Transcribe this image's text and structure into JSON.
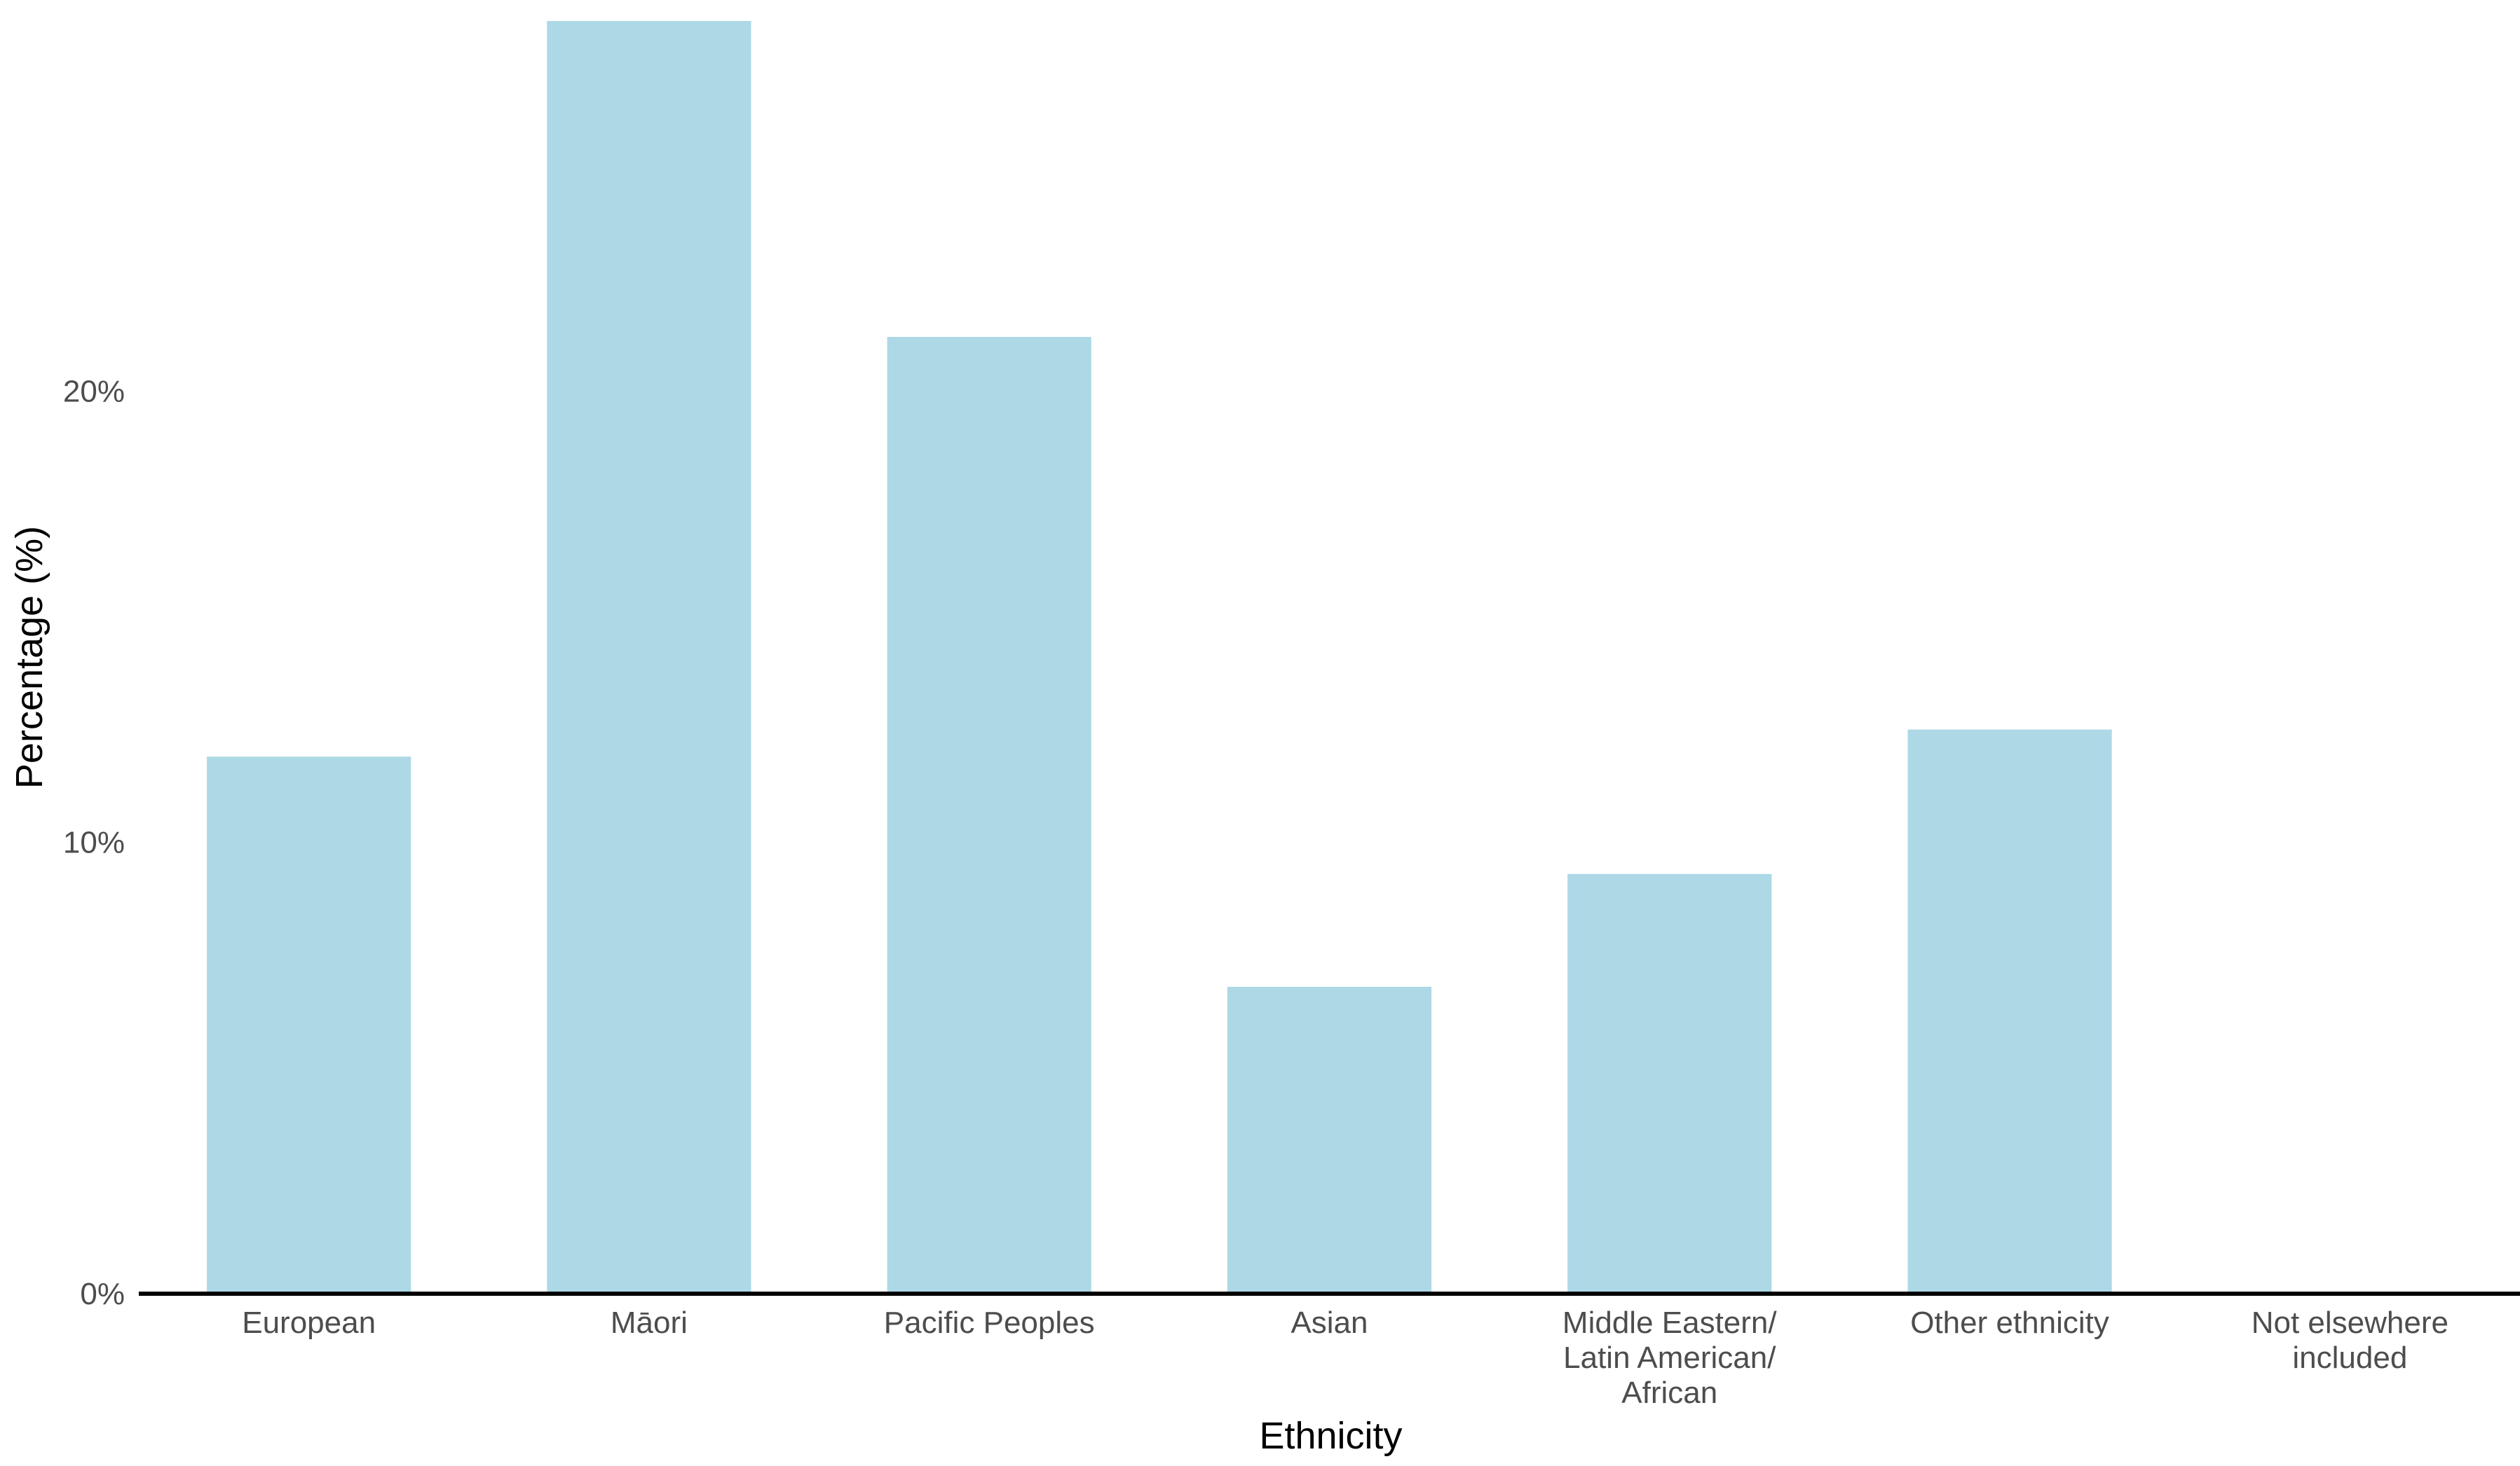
{
  "chart_data": {
    "type": "bar",
    "title": "",
    "xlabel": "Ethnicity",
    "ylabel": "Percentage (%)",
    "categories": [
      [
        "European"
      ],
      [
        "Māori"
      ],
      [
        "Pacific Peoples"
      ],
      [
        "Asian"
      ],
      [
        "Middle Eastern/",
        "Latin American/",
        "African"
      ],
      [
        "Other ethnicity"
      ],
      [
        "Not elsewhere",
        "included"
      ]
    ],
    "values": [
      11.9,
      28.2,
      21.2,
      6.8,
      9.3,
      12.5,
      0
    ],
    "ylim": [
      0,
      28.2
    ],
    "yticks": [
      0,
      10,
      20
    ],
    "ytick_labels": [
      "0%",
      "10%",
      "20%"
    ],
    "bar_color": "#add8e6",
    "axis_color": "#000000",
    "grid": false,
    "legend": "none"
  }
}
